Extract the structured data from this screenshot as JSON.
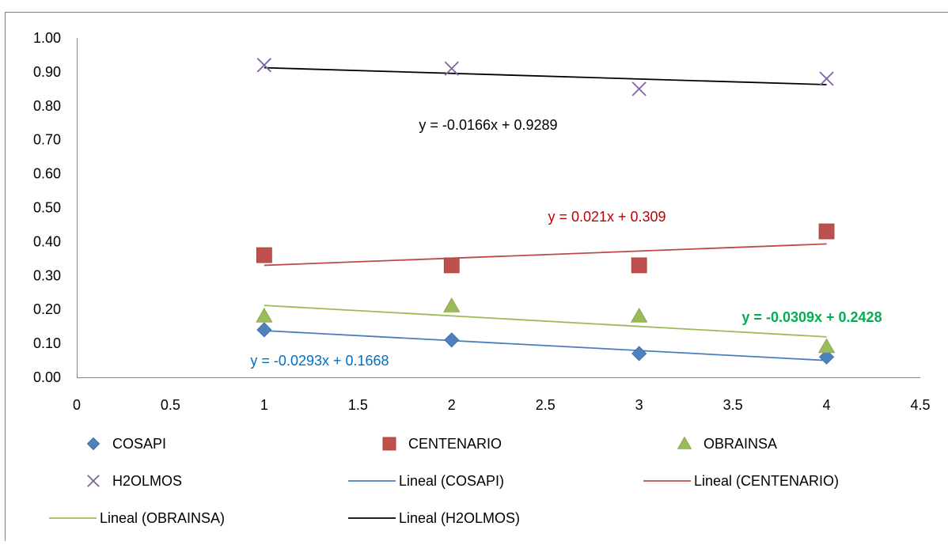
{
  "chart_data": {
    "type": "scatter",
    "title": "",
    "xlabel": "",
    "ylabel": "",
    "xlim": [
      0,
      4.5
    ],
    "ylim": [
      0,
      1.0
    ],
    "x_ticks": [
      "0",
      "0.5",
      "1",
      "1.5",
      "2",
      "2.5",
      "3",
      "3.5",
      "4",
      "4.5"
    ],
    "y_ticks": [
      "0.00",
      "0.10",
      "0.20",
      "0.30",
      "0.40",
      "0.50",
      "0.60",
      "0.70",
      "0.80",
      "0.90",
      "1.00"
    ],
    "grid": false,
    "legend_position": "bottom",
    "series": [
      {
        "name": "COSAPI",
        "marker": "diamond",
        "color": "#4F81BD",
        "x": [
          1,
          2,
          3,
          4
        ],
        "y": [
          0.14,
          0.11,
          0.07,
          0.06
        ]
      },
      {
        "name": "CENTENARIO",
        "marker": "square",
        "color": "#C0504D",
        "x": [
          1,
          2,
          3,
          4
        ],
        "y": [
          0.36,
          0.33,
          0.33,
          0.43
        ]
      },
      {
        "name": "OBRAINSA",
        "marker": "triangle",
        "color": "#9BBB59",
        "x": [
          1,
          2,
          3,
          4
        ],
        "y": [
          0.18,
          0.21,
          0.18,
          0.09
        ]
      },
      {
        "name": "H2OLMOS",
        "marker": "x",
        "color": "#8064A2",
        "x": [
          1,
          2,
          3,
          4
        ],
        "y": [
          0.92,
          0.91,
          0.85,
          0.88
        ]
      }
    ],
    "trendlines": [
      {
        "name": "Lineal (COSAPI)",
        "color": "#4A7EBB",
        "slope": -0.0293,
        "intercept": 0.1668,
        "x_range": [
          1,
          4
        ],
        "equation": "y = -0.0293x + 0.1668",
        "equation_color": "#0070C0",
        "equation_bold": false
      },
      {
        "name": "Lineal (CENTENARIO)",
        "color": "#BE4B48",
        "slope": 0.021,
        "intercept": 0.309,
        "x_range": [
          1,
          4
        ],
        "equation": "y = 0.021x + 0.309",
        "equation_color": "#C00000",
        "equation_bold": false
      },
      {
        "name": "Lineal (OBRAINSA)",
        "color": "#9BBB59",
        "slope": -0.0309,
        "intercept": 0.2428,
        "x_range": [
          1,
          4
        ],
        "equation": "y = -0.0309x + 0.2428",
        "equation_color": "#00B050",
        "equation_bold": true
      },
      {
        "name": "Lineal (H2OLMOS)",
        "color": "#000000",
        "slope": -0.0166,
        "intercept": 0.9289,
        "x_range": [
          1,
          4
        ],
        "equation": "y = -0.0166x + 0.9289",
        "equation_color": "#000000",
        "equation_bold": false
      }
    ],
    "legend": [
      {
        "label": "COSAPI",
        "kind": "marker",
        "marker": "diamond",
        "color": "#4F81BD"
      },
      {
        "label": "CENTENARIO",
        "kind": "marker",
        "marker": "square",
        "color": "#C0504D"
      },
      {
        "label": "OBRAINSA",
        "kind": "marker",
        "marker": "triangle",
        "color": "#9BBB59"
      },
      {
        "label": "H2OLMOS",
        "kind": "marker",
        "marker": "x",
        "color": "#8064A2"
      },
      {
        "label": "Lineal (COSAPI)",
        "kind": "line",
        "color": "#4A7EBB"
      },
      {
        "label": "Lineal (CENTENARIO)",
        "kind": "line",
        "color": "#BE4B48"
      },
      {
        "label": "Lineal (OBRAINSA)",
        "kind": "line",
        "color": "#9BBB59"
      },
      {
        "label": "Lineal (H2OLMOS)",
        "kind": "line",
        "color": "#000000"
      }
    ]
  }
}
